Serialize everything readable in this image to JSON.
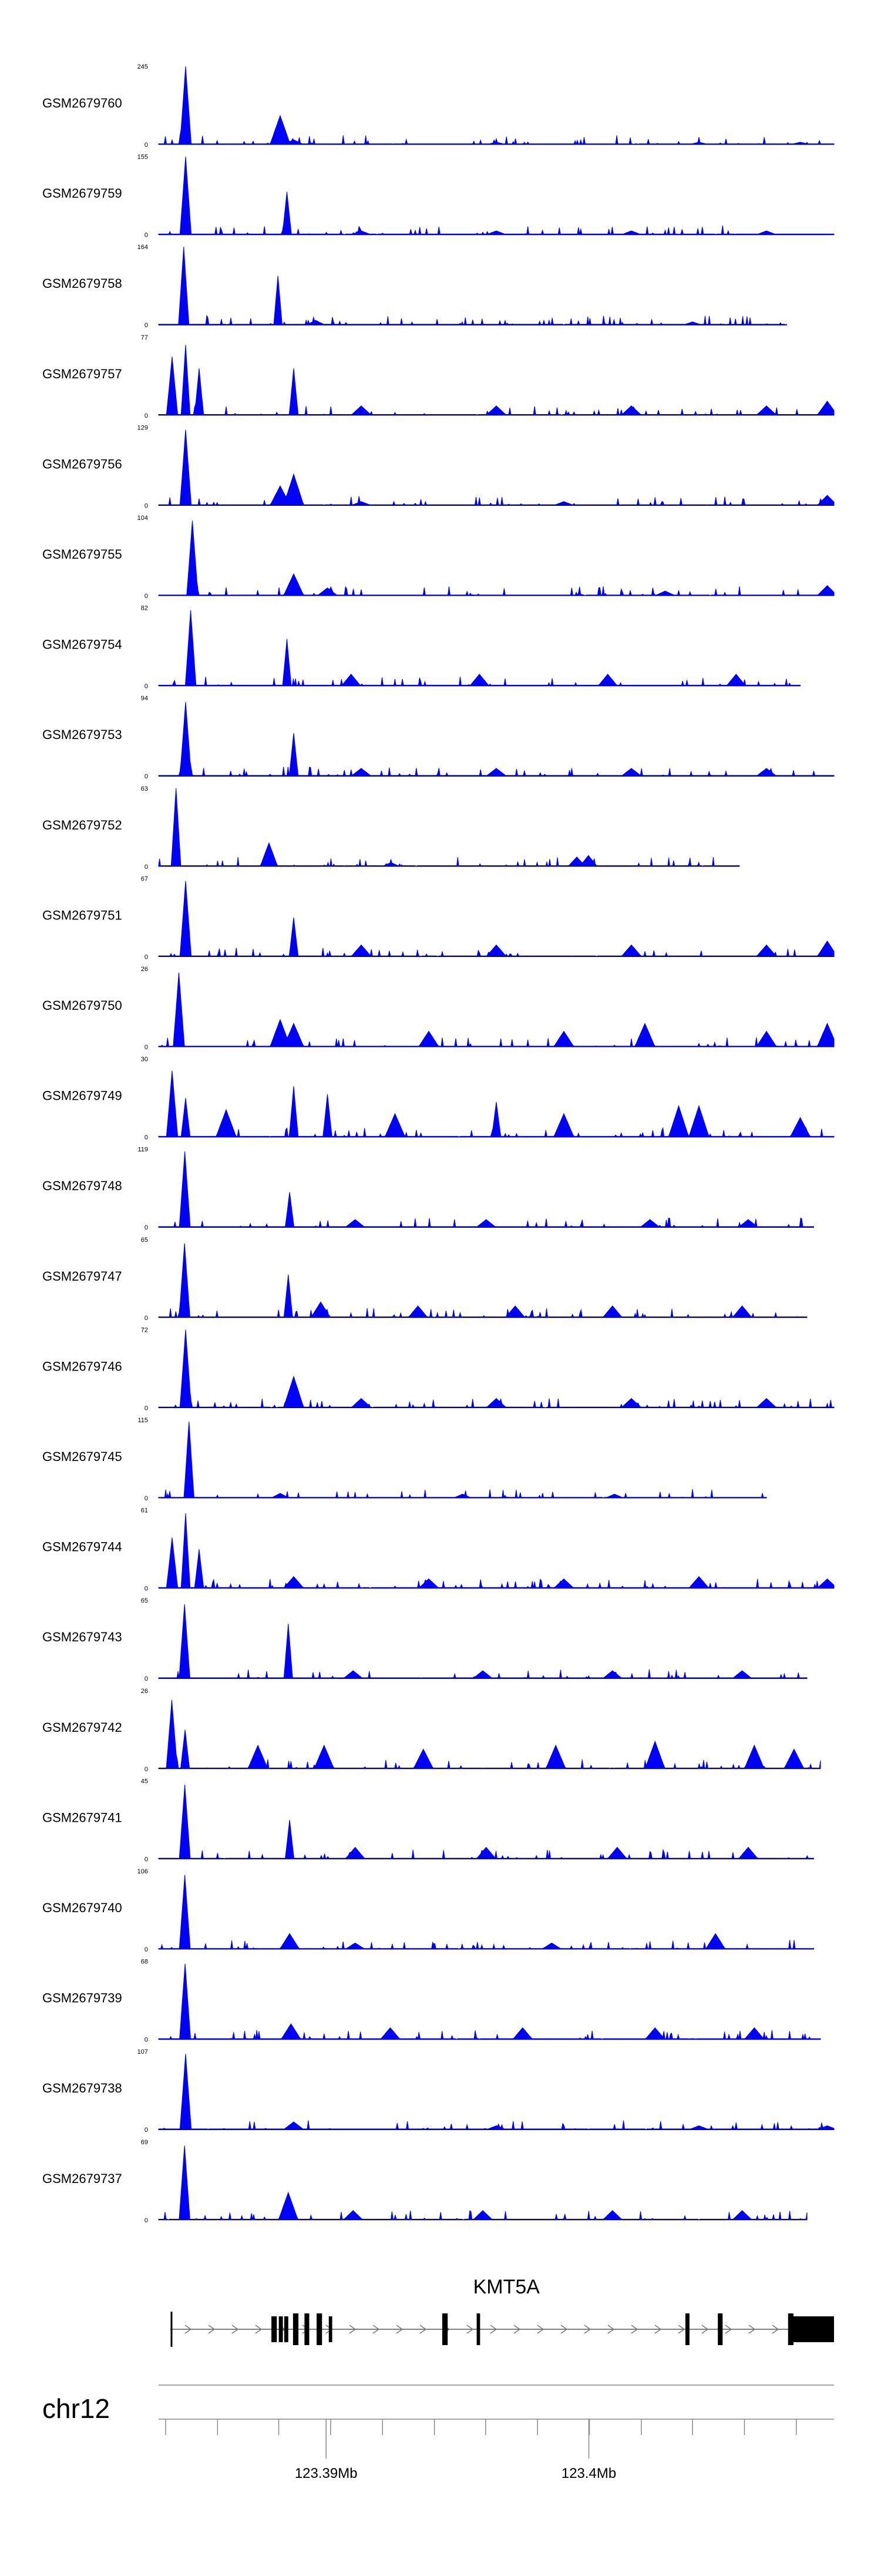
{
  "chart_data": {
    "type": "area",
    "color": "#0000FF",
    "tracks": [
      {
        "name": "GSM2679760",
        "max": 245,
        "extent": 1.0,
        "peaks": [
          [
            0.04,
            1.0
          ],
          [
            0.18,
            0.37
          ],
          [
            0.2,
            0.06
          ],
          [
            0.5,
            0.03
          ],
          [
            0.8,
            0.03
          ],
          [
            0.95,
            0.03
          ]
        ]
      },
      {
        "name": "GSM2679759",
        "max": 155,
        "extent": 1.0,
        "peaks": [
          [
            0.04,
            1.0
          ],
          [
            0.19,
            0.55
          ],
          [
            0.3,
            0.05
          ],
          [
            0.5,
            0.05
          ],
          [
            0.7,
            0.05
          ],
          [
            0.9,
            0.05
          ]
        ]
      },
      {
        "name": "GSM2679758",
        "max": 164,
        "extent": 0.93,
        "peaks": [
          [
            0.04,
            1.0
          ],
          [
            0.19,
            0.63
          ],
          [
            0.25,
            0.06
          ],
          [
            0.85,
            0.04
          ]
        ]
      },
      {
        "name": "GSM2679757",
        "max": 77,
        "extent": 1.0,
        "peaks": [
          [
            0.02,
            0.75
          ],
          [
            0.04,
            0.9
          ],
          [
            0.06,
            0.6
          ],
          [
            0.2,
            0.6
          ],
          [
            0.3,
            0.12
          ],
          [
            0.5,
            0.12
          ],
          [
            0.7,
            0.12
          ],
          [
            0.9,
            0.12
          ],
          [
            0.99,
            0.18
          ]
        ]
      },
      {
        "name": "GSM2679756",
        "max": 129,
        "extent": 1.0,
        "peaks": [
          [
            0.04,
            0.97
          ],
          [
            0.2,
            0.4
          ],
          [
            0.18,
            0.25
          ],
          [
            0.3,
            0.05
          ],
          [
            0.6,
            0.05
          ],
          [
            0.99,
            0.13
          ]
        ]
      },
      {
        "name": "GSM2679755",
        "max": 104,
        "extent": 1.0,
        "peaks": [
          [
            0.05,
            0.96
          ],
          [
            0.2,
            0.28
          ],
          [
            0.25,
            0.1
          ],
          [
            0.75,
            0.06
          ],
          [
            0.99,
            0.13
          ]
        ]
      },
      {
        "name": "GSM2679754",
        "max": 82,
        "extent": 0.95,
        "peaks": [
          [
            0.05,
            0.97
          ],
          [
            0.2,
            0.6
          ],
          [
            0.3,
            0.15
          ],
          [
            0.5,
            0.15
          ],
          [
            0.7,
            0.15
          ],
          [
            0.9,
            0.15
          ]
        ]
      },
      {
        "name": "GSM2679753",
        "max": 94,
        "extent": 1.0,
        "peaks": [
          [
            0.04,
            0.95
          ],
          [
            0.2,
            0.55
          ],
          [
            0.3,
            0.1
          ],
          [
            0.5,
            0.1
          ],
          [
            0.7,
            0.1
          ],
          [
            0.9,
            0.1
          ]
        ]
      },
      {
        "name": "GSM2679752",
        "max": 63,
        "extent": 0.86,
        "peaks": [
          [
            0.03,
            1.0
          ],
          [
            0.19,
            0.3
          ],
          [
            0.4,
            0.05
          ],
          [
            0.72,
            0.12
          ],
          [
            0.74,
            0.14
          ]
        ]
      },
      {
        "name": "GSM2679751",
        "max": 67,
        "extent": 1.0,
        "peaks": [
          [
            0.04,
            0.97
          ],
          [
            0.2,
            0.5
          ],
          [
            0.3,
            0.15
          ],
          [
            0.5,
            0.15
          ],
          [
            0.7,
            0.15
          ],
          [
            0.9,
            0.15
          ],
          [
            0.99,
            0.2
          ]
        ]
      },
      {
        "name": "GSM2679750",
        "max": 26,
        "extent": 1.0,
        "peaks": [
          [
            0.03,
            0.95
          ],
          [
            0.18,
            0.35
          ],
          [
            0.2,
            0.3
          ],
          [
            0.4,
            0.2
          ],
          [
            0.6,
            0.2
          ],
          [
            0.72,
            0.3
          ],
          [
            0.9,
            0.2
          ],
          [
            0.99,
            0.3
          ]
        ]
      },
      {
        "name": "GSM2679749",
        "max": 30,
        "extent": 1.0,
        "peaks": [
          [
            0.02,
            0.85
          ],
          [
            0.04,
            0.5
          ],
          [
            0.1,
            0.35
          ],
          [
            0.2,
            0.65
          ],
          [
            0.25,
            0.55
          ],
          [
            0.35,
            0.3
          ],
          [
            0.5,
            0.45
          ],
          [
            0.6,
            0.3
          ],
          [
            0.77,
            0.4
          ],
          [
            0.8,
            0.4
          ],
          [
            0.95,
            0.25
          ]
        ]
      },
      {
        "name": "GSM2679748",
        "max": 119,
        "extent": 0.97,
        "peaks": [
          [
            0.04,
            0.97
          ],
          [
            0.2,
            0.45
          ],
          [
            0.3,
            0.1
          ],
          [
            0.5,
            0.1
          ],
          [
            0.75,
            0.1
          ],
          [
            0.9,
            0.1
          ]
        ]
      },
      {
        "name": "GSM2679747",
        "max": 65,
        "extent": 0.96,
        "peaks": [
          [
            0.04,
            0.95
          ],
          [
            0.2,
            0.55
          ],
          [
            0.25,
            0.2
          ],
          [
            0.4,
            0.15
          ],
          [
            0.55,
            0.15
          ],
          [
            0.7,
            0.15
          ],
          [
            0.9,
            0.15
          ]
        ]
      },
      {
        "name": "GSM2679746",
        "max": 72,
        "extent": 1.0,
        "peaks": [
          [
            0.04,
            1.0
          ],
          [
            0.2,
            0.4
          ],
          [
            0.3,
            0.12
          ],
          [
            0.5,
            0.12
          ],
          [
            0.7,
            0.12
          ],
          [
            0.9,
            0.12
          ]
        ]
      },
      {
        "name": "GSM2679745",
        "max": 115,
        "extent": 0.9,
        "peaks": [
          [
            0.05,
            0.98
          ],
          [
            0.2,
            0.06
          ],
          [
            0.5,
            0.05
          ],
          [
            0.75,
            0.05
          ]
        ]
      },
      {
        "name": "GSM2679744",
        "max": 61,
        "extent": 1.0,
        "peaks": [
          [
            0.02,
            0.65
          ],
          [
            0.04,
            0.96
          ],
          [
            0.06,
            0.5
          ],
          [
            0.2,
            0.15
          ],
          [
            0.4,
            0.12
          ],
          [
            0.6,
            0.12
          ],
          [
            0.8,
            0.15
          ],
          [
            0.99,
            0.12
          ]
        ]
      },
      {
        "name": "GSM2679743",
        "max": 65,
        "extent": 0.96,
        "peaks": [
          [
            0.04,
            0.95
          ],
          [
            0.2,
            0.7
          ],
          [
            0.3,
            0.1
          ],
          [
            0.5,
            0.1
          ],
          [
            0.7,
            0.1
          ],
          [
            0.9,
            0.1
          ]
        ]
      },
      {
        "name": "GSM2679742",
        "max": 26,
        "extent": 0.98,
        "peaks": [
          [
            0.02,
            0.88
          ],
          [
            0.04,
            0.5
          ],
          [
            0.15,
            0.3
          ],
          [
            0.25,
            0.3
          ],
          [
            0.4,
            0.25
          ],
          [
            0.6,
            0.3
          ],
          [
            0.75,
            0.35
          ],
          [
            0.9,
            0.3
          ],
          [
            0.96,
            0.25
          ]
        ]
      },
      {
        "name": "GSM2679741",
        "max": 45,
        "extent": 0.97,
        "peaks": [
          [
            0.04,
            0.95
          ],
          [
            0.2,
            0.5
          ],
          [
            0.3,
            0.15
          ],
          [
            0.5,
            0.15
          ],
          [
            0.7,
            0.15
          ],
          [
            0.9,
            0.15
          ]
        ]
      },
      {
        "name": "GSM2679740",
        "max": 106,
        "extent": 0.97,
        "peaks": [
          [
            0.04,
            0.95
          ],
          [
            0.2,
            0.2
          ],
          [
            0.3,
            0.08
          ],
          [
            0.6,
            0.08
          ],
          [
            0.85,
            0.2
          ]
        ]
      },
      {
        "name": "GSM2679739",
        "max": 68,
        "extent": 0.98,
        "peaks": [
          [
            0.04,
            0.97
          ],
          [
            0.2,
            0.2
          ],
          [
            0.35,
            0.15
          ],
          [
            0.55,
            0.15
          ],
          [
            0.75,
            0.15
          ],
          [
            0.9,
            0.15
          ]
        ]
      },
      {
        "name": "GSM2679738",
        "max": 107,
        "extent": 1.0,
        "peaks": [
          [
            0.04,
            0.97
          ],
          [
            0.2,
            0.1
          ],
          [
            0.5,
            0.05
          ],
          [
            0.8,
            0.05
          ],
          [
            0.99,
            0.05
          ]
        ]
      },
      {
        "name": "GSM2679737",
        "max": 69,
        "extent": 0.96,
        "peaks": [
          [
            0.04,
            0.95
          ],
          [
            0.2,
            0.35
          ],
          [
            0.3,
            0.12
          ],
          [
            0.5,
            0.12
          ],
          [
            0.7,
            0.12
          ],
          [
            0.9,
            0.12
          ]
        ]
      }
    ],
    "gene": {
      "name": "KMT5A",
      "exons": [
        {
          "start": 0.167,
          "end": 0.175,
          "height": "mid"
        },
        {
          "start": 0.178,
          "end": 0.184,
          "height": "mid"
        },
        {
          "start": 0.186,
          "end": 0.192,
          "height": "mid"
        },
        {
          "start": 0.199,
          "end": 0.207,
          "height": "full"
        },
        {
          "start": 0.216,
          "end": 0.223,
          "height": "full"
        },
        {
          "start": 0.234,
          "end": 0.242,
          "height": "full"
        },
        {
          "start": 0.252,
          "end": 0.257,
          "height": "mid"
        },
        {
          "start": 0.42,
          "end": 0.428,
          "height": "full"
        },
        {
          "start": 0.471,
          "end": 0.476,
          "height": "full"
        },
        {
          "start": 0.78,
          "end": 0.786,
          "height": "full"
        },
        {
          "start": 0.828,
          "end": 0.835,
          "height": "full"
        },
        {
          "start": 0.932,
          "end": 0.94,
          "height": "full"
        },
        {
          "start": 0.94,
          "end": 1.0,
          "height": "mid"
        }
      ]
    },
    "chromosome": "chr12",
    "axis": {
      "tick_labels": [
        {
          "label": "123.39Mb",
          "position": 0.248
        },
        {
          "label": "123.4Mb",
          "position": 0.637
        }
      ],
      "minor_ticks": [
        0.0,
        0.078,
        0.17,
        0.248,
        0.326,
        0.404,
        0.481,
        0.559,
        0.637,
        0.715,
        0.792,
        0.87,
        0.948
      ],
      "y_min_label": "0"
    }
  }
}
